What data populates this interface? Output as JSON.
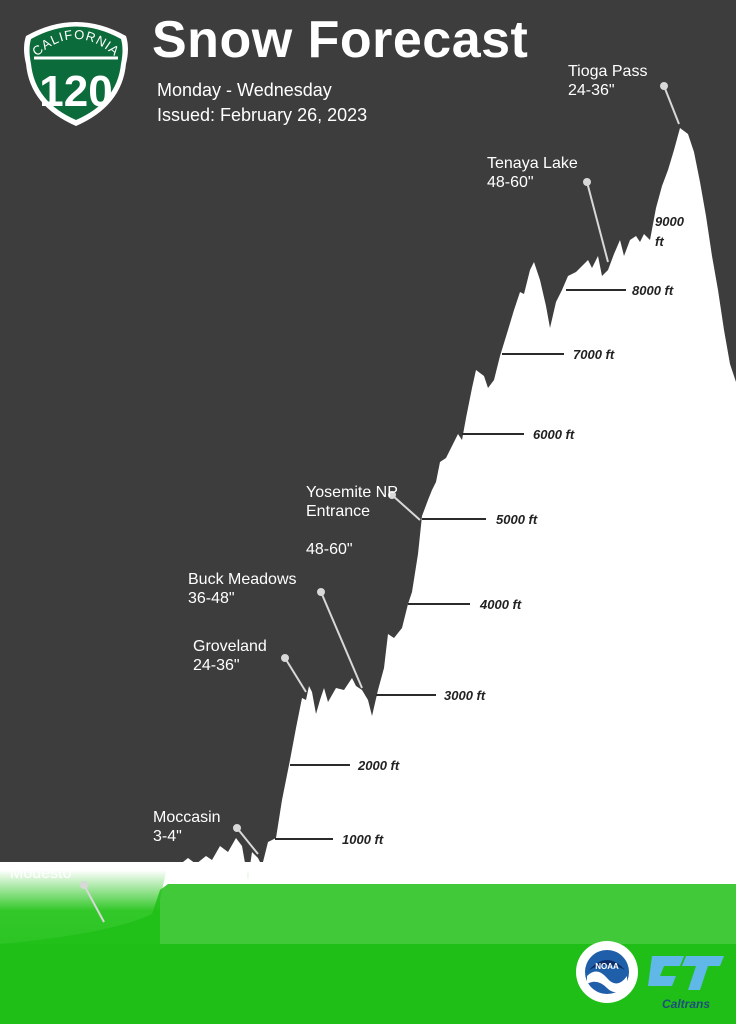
{
  "header": {
    "title": "Snow Forecast",
    "period": "Monday - Wednesday",
    "issued": "Issued: February 26, 2023"
  },
  "shield": {
    "state": "CALIFORNIA",
    "route": "120"
  },
  "locations": [
    {
      "name": "Tioga Pass",
      "forecast": "24-36\""
    },
    {
      "name": "Tenaya Lake",
      "forecast": "48-60\""
    },
    {
      "name": "Yosemite NP\nEntrance",
      "forecast": "48-60\""
    },
    {
      "name": "Buck Meadows",
      "forecast": "36-48\""
    },
    {
      "name": "Groveland",
      "forecast": "24-36\""
    },
    {
      "name": "Moccasin",
      "forecast": "3-4\""
    },
    {
      "name": "Modesto",
      "forecast": ""
    }
  ],
  "elevations": [
    "9000 ft",
    "8000 ft",
    "7000 ft",
    "6000 ft",
    "5000 ft",
    "4000 ft",
    "3000 ft",
    "2000 ft",
    "1000 ft"
  ],
  "logos": {
    "noaa_text": "NOAA",
    "caltrans_text": "Caltrans"
  },
  "colors": {
    "background": "#3d3d3d",
    "snow": "#ffffff",
    "grass": "#22c11a",
    "shield_green": "#0b6b3a"
  }
}
